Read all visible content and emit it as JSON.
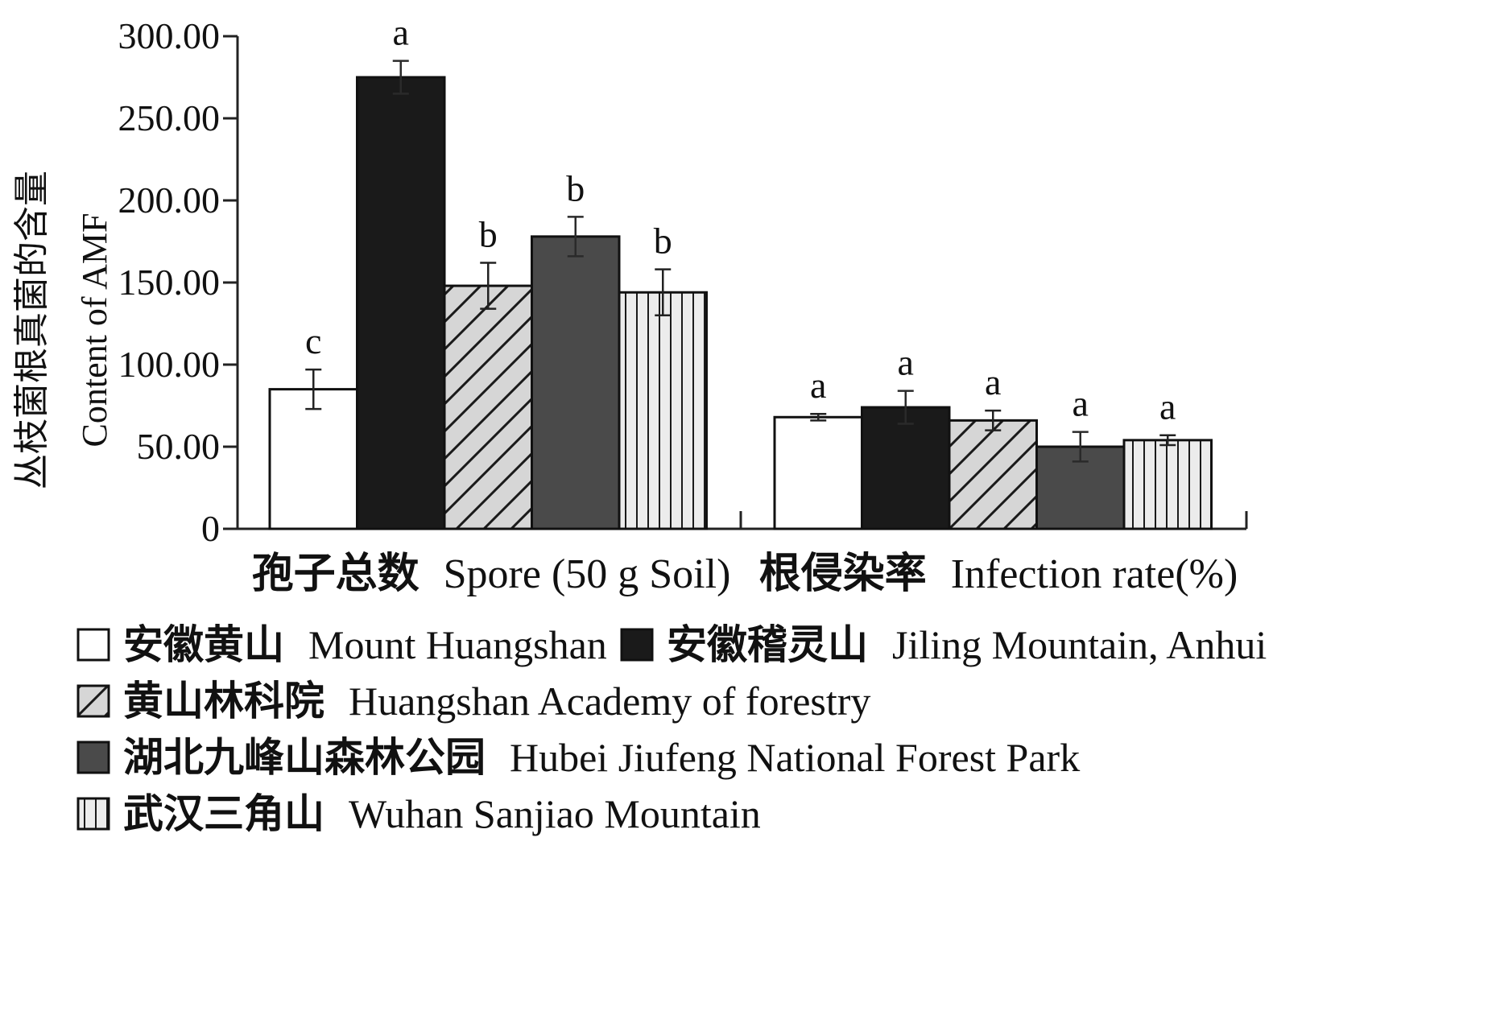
{
  "chart_data": {
    "type": "bar",
    "ylabel_cn": "丛枝菌根真菌的含量",
    "ylabel_en": "Content of AMF",
    "ylim": [
      0,
      300
    ],
    "yticks": [
      {
        "value": 0,
        "label": "0"
      },
      {
        "value": 50,
        "label": "50.00"
      },
      {
        "value": 100,
        "label": "100.00"
      },
      {
        "value": 150,
        "label": "150.00"
      },
      {
        "value": 200,
        "label": "200.00"
      },
      {
        "value": 250,
        "label": "250.00"
      },
      {
        "value": 300,
        "label": "300.00"
      }
    ],
    "categories": [
      {
        "cn": "孢子总数",
        "en": "Spore (50 g Soil)"
      },
      {
        "cn": "根侵染率",
        "en": "Infection rate(%)"
      }
    ],
    "series": [
      {
        "name_cn": "安徽黄山",
        "name_en": "Mount Huangshan",
        "pattern": "white",
        "values": [
          85,
          68
        ],
        "errors": [
          12,
          2
        ],
        "letters": [
          "c",
          "a"
        ]
      },
      {
        "name_cn": "安徽稽灵山",
        "name_en": "Jiling Mountain, Anhui",
        "pattern": "black",
        "values": [
          275,
          74
        ],
        "errors": [
          10,
          10
        ],
        "letters": [
          "a",
          "a"
        ]
      },
      {
        "name_cn": "黄山林科院",
        "name_en": "Huangshan Academy of forestry",
        "pattern": "diagonal",
        "values": [
          148,
          66
        ],
        "errors": [
          14,
          6
        ],
        "letters": [
          "b",
          "a"
        ]
      },
      {
        "name_cn": "湖北九峰山森林公园",
        "name_en": "Hubei Jiufeng National Forest Park",
        "pattern": "darkgray",
        "values": [
          178,
          50
        ],
        "errors": [
          12,
          9
        ],
        "letters": [
          "b",
          "a"
        ]
      },
      {
        "name_cn": "武汉三角山",
        "name_en": "Wuhan Sanjiao Mountain",
        "pattern": "vertical",
        "values": [
          144,
          54
        ],
        "errors": [
          14,
          3
        ],
        "letters": [
          "b",
          "a"
        ]
      }
    ],
    "grid": false,
    "legend_position": "bottom"
  },
  "colors": {
    "black": "#1a1a1a",
    "dark_gray": "#4a4a4a",
    "light_gray": "#d6d6d6",
    "very_light_gray": "#ececec",
    "axis": "#222222"
  }
}
